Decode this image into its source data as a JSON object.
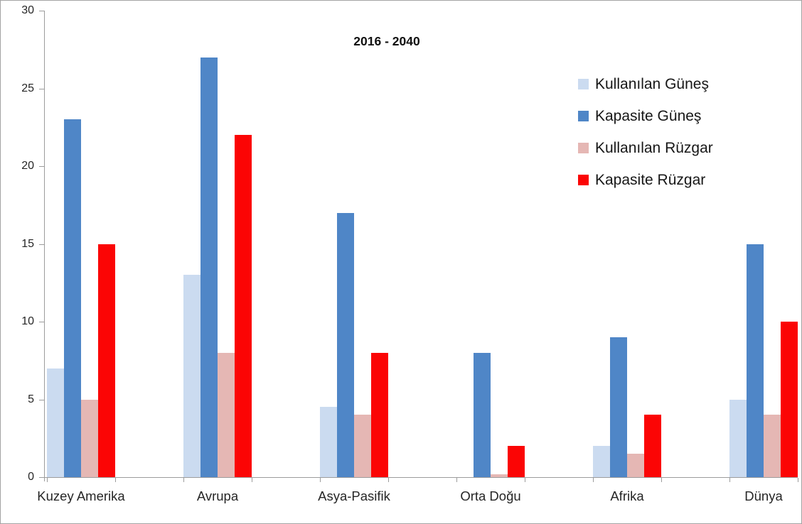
{
  "chart_data": {
    "type": "bar",
    "title": "2016 - 2040",
    "categories": [
      "Kuzey Amerika",
      "Avrupa",
      "Asya-Pasifik",
      "Orta Doğu",
      "Afrika",
      "Dünya"
    ],
    "series": [
      {
        "name": "Kullanılan Güneş",
        "color": "#CBDBF0",
        "values": [
          7,
          13,
          4.5,
          0,
          2,
          5
        ]
      },
      {
        "name": "Kapasite Güneş",
        "color": "#4F86C7",
        "values": [
          23,
          27,
          17,
          8,
          9,
          15
        ]
      },
      {
        "name": "Kullanılan Rüzgar",
        "color": "#E5B7B4",
        "values": [
          5,
          8,
          4,
          0.2,
          1.5,
          4
        ]
      },
      {
        "name": "Kapasite Rüzgar",
        "color": "#FB0505",
        "values": [
          15,
          22,
          8,
          2,
          4,
          10
        ]
      }
    ],
    "ylim": [
      0,
      30
    ],
    "ytick_step": 5,
    "ytick_labels": [
      "0",
      "5",
      "10",
      "15",
      "20",
      "25",
      "30"
    ],
    "grid": false,
    "legend_position": "right-top",
    "axis_color": "#9c9c9c",
    "text_color": "#262626"
  }
}
